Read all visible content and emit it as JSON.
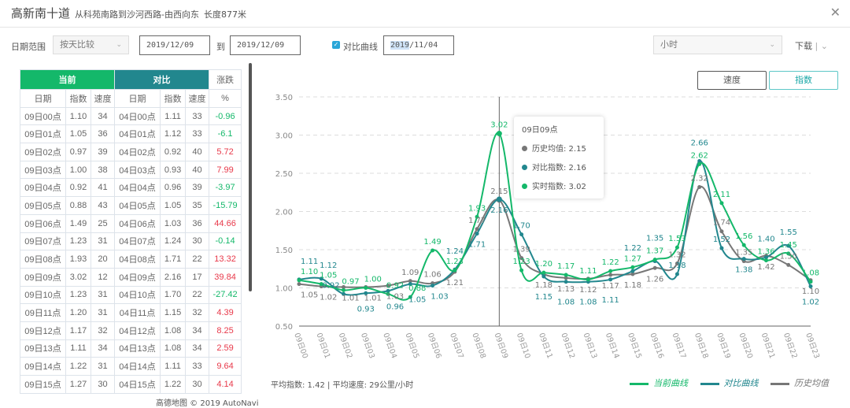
{
  "header": {
    "road": "高新南十道",
    "route": "从科苑南路到沙河西路-由西向东",
    "length": "长度877米"
  },
  "controls": {
    "date_range_label": "日期范围",
    "mode": "按天比较",
    "start_date": "2019/12/09",
    "to_label": "到",
    "end_date": "2019/12/09",
    "compare_label": "对比曲线",
    "compare_checked": true,
    "compare_date_year": "2019",
    "compare_date_rest": "/11/04",
    "granularity": "小时",
    "download": "下载",
    "speed_btn": "速度",
    "index_btn": "指数"
  },
  "table": {
    "group_current": "当前",
    "group_compare": "对比",
    "group_change": "涨跌",
    "columns": [
      "日期",
      "指数",
      "速度",
      "日期",
      "指数",
      "速度",
      "%"
    ],
    "rows": [
      [
        "09日00点",
        "1.10",
        "34",
        "04日00点",
        "1.11",
        "33",
        "-0.96"
      ],
      [
        "09日01点",
        "1.05",
        "36",
        "04日01点",
        "1.12",
        "33",
        "-6.1"
      ],
      [
        "09日02点",
        "0.97",
        "39",
        "04日02点",
        "0.92",
        "40",
        "5.72"
      ],
      [
        "09日03点",
        "1.00",
        "38",
        "04日03点",
        "0.93",
        "40",
        "7.99"
      ],
      [
        "09日04点",
        "0.92",
        "41",
        "04日04点",
        "0.96",
        "39",
        "-3.97"
      ],
      [
        "09日05点",
        "0.88",
        "43",
        "04日05点",
        "1.05",
        "35",
        "-15.79"
      ],
      [
        "09日06点",
        "1.49",
        "25",
        "04日06点",
        "1.03",
        "36",
        "44.66"
      ],
      [
        "09日07点",
        "1.23",
        "31",
        "04日07点",
        "1.24",
        "30",
        "-0.14"
      ],
      [
        "09日08点",
        "1.93",
        "20",
        "04日08点",
        "1.71",
        "22",
        "13.32"
      ],
      [
        "09日09点",
        "3.02",
        "12",
        "04日09点",
        "2.16",
        "17",
        "39.84"
      ],
      [
        "09日10点",
        "1.23",
        "31",
        "04日10点",
        "1.70",
        "22",
        "-27.42"
      ],
      [
        "09日11点",
        "1.20",
        "31",
        "04日11点",
        "1.15",
        "32",
        "4.39"
      ],
      [
        "09日12点",
        "1.17",
        "32",
        "04日12点",
        "1.08",
        "34",
        "8.25"
      ],
      [
        "09日13点",
        "1.11",
        "34",
        "04日13点",
        "1.08",
        "34",
        "2.59"
      ],
      [
        "09日14点",
        "1.22",
        "31",
        "04日14点",
        "1.11",
        "33",
        "9.64"
      ],
      [
        "09日15点",
        "1.27",
        "30",
        "04日15点",
        "1.22",
        "30",
        "4.14"
      ]
    ]
  },
  "summary": {
    "avg_index": "平均指数: 1.42",
    "sep": "|",
    "avg_speed": "平均速度: 29公里/小时"
  },
  "watermark": "高德地图 © 2019 AutoNavi",
  "chart_data": {
    "type": "line",
    "ylim": [
      0.5,
      3.5
    ],
    "yticks": [
      "0.50",
      "1.00",
      "1.50",
      "2.00",
      "2.50",
      "3.00",
      "3.50"
    ],
    "categories": [
      "09日00点",
      "09日01点",
      "09日02点",
      "09日03点",
      "09日04点",
      "09日05点",
      "09日06点",
      "09日07点",
      "09日08点",
      "09日09点",
      "09日10点",
      "09日11点",
      "09日12点",
      "09日13点",
      "09日14点",
      "09日15点",
      "09日16点",
      "09日17点",
      "09日18点",
      "09日19点",
      "09日20点",
      "09日21点",
      "09日22点",
      "09日23点"
    ],
    "grid": true,
    "legend": "bottom-right",
    "series": [
      {
        "name": "当前曲线",
        "color": "#14b86a",
        "values": [
          1.1,
          1.05,
          0.97,
          1.0,
          0.92,
          0.88,
          1.49,
          1.23,
          1.93,
          3.02,
          1.23,
          1.2,
          1.17,
          1.11,
          1.22,
          1.27,
          1.37,
          1.53,
          2.62,
          2.11,
          1.56,
          1.36,
          1.45,
          1.08
        ]
      },
      {
        "name": "对比曲线",
        "color": "#22878e",
        "values": [
          1.11,
          1.12,
          0.92,
          0.93,
          0.96,
          1.05,
          1.03,
          1.24,
          1.71,
          2.16,
          1.7,
          1.15,
          1.08,
          1.08,
          1.11,
          1.22,
          1.35,
          1.18,
          2.66,
          1.52,
          1.38,
          1.4,
          1.55,
          1.02
        ]
      },
      {
        "name": "历史均值",
        "color": "#777777",
        "values": [
          1.05,
          1.02,
          1.01,
          1.01,
          1.03,
          1.09,
          1.06,
          1.21,
          1.77,
          2.15,
          1.39,
          1.18,
          1.13,
          1.12,
          1.17,
          1.18,
          1.26,
          1.32,
          2.32,
          1.74,
          1.35,
          1.42,
          1.3,
          1.1
        ]
      }
    ],
    "tooltip": {
      "title": "09日09点",
      "items": [
        "历史均值: 2.15",
        "对比指数: 2.16",
        "实时指数: 3.02"
      ]
    }
  }
}
